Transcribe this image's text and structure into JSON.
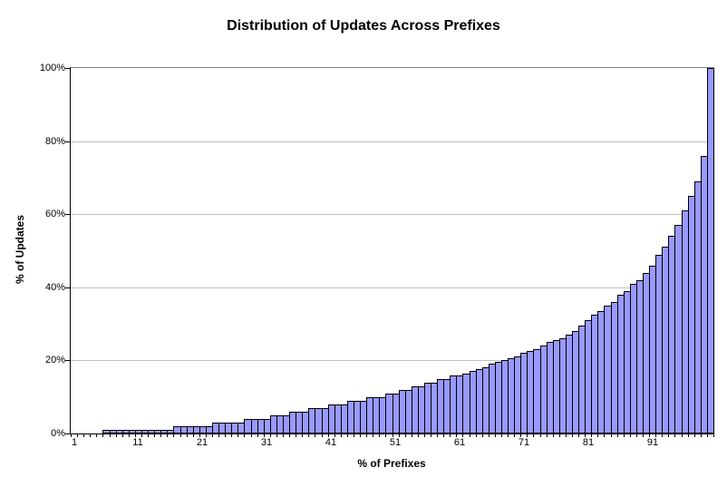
{
  "chart_data": {
    "type": "bar",
    "title": "Distribution of Updates Across Prefixes",
    "xlabel": "% of Prefixes",
    "ylabel": "% of Updates",
    "categories": [
      1,
      2,
      3,
      4,
      5,
      6,
      7,
      8,
      9,
      10,
      11,
      12,
      13,
      14,
      15,
      16,
      17,
      18,
      19,
      20,
      21,
      22,
      23,
      24,
      25,
      26,
      27,
      28,
      29,
      30,
      31,
      32,
      33,
      34,
      35,
      36,
      37,
      38,
      39,
      40,
      41,
      42,
      43,
      44,
      45,
      46,
      47,
      48,
      49,
      50,
      51,
      52,
      53,
      54,
      55,
      56,
      57,
      58,
      59,
      60,
      61,
      62,
      63,
      64,
      65,
      66,
      67,
      68,
      69,
      70,
      71,
      72,
      73,
      74,
      75,
      76,
      77,
      78,
      79,
      80,
      81,
      82,
      83,
      84,
      85,
      86,
      87,
      88,
      89,
      90,
      91,
      92,
      93,
      94,
      95,
      96,
      97,
      98,
      99,
      100
    ],
    "values": [
      0,
      0,
      0,
      0,
      0,
      1,
      1,
      1,
      1,
      1,
      1,
      1,
      1,
      1,
      1,
      1,
      2,
      2,
      2,
      2,
      2,
      2,
      3,
      3,
      3,
      3,
      3,
      4,
      4,
      4,
      4,
      5,
      5,
      5,
      6,
      6,
      6,
      7,
      7,
      7,
      8,
      8,
      8,
      9,
      9,
      9,
      10,
      10,
      10,
      11,
      11,
      12,
      12,
      13,
      13,
      14,
      14,
      15,
      15,
      16,
      16,
      16.5,
      17,
      17.5,
      18,
      19,
      19.5,
      20,
      20.5,
      21,
      22,
      22.5,
      23,
      24,
      25,
      25.5,
      26,
      27,
      28,
      29.5,
      31,
      32.5,
      33.5,
      35,
      36,
      38,
      39,
      41,
      42,
      44,
      46,
      49,
      51,
      54,
      57,
      61,
      65,
      69,
      76,
      100
    ],
    "xticks": [
      1,
      11,
      21,
      31,
      41,
      51,
      61,
      71,
      81,
      91
    ],
    "yticks": [
      0,
      20,
      40,
      60,
      80,
      100
    ],
    "ytick_suffix": "%",
    "ylim": [
      0,
      100
    ],
    "grid": true,
    "legend": false,
    "bar_color": "#9999ff",
    "bar_border_color": "#000000",
    "gridline_color": "#c0c0c0",
    "plot_border_color": "#808080",
    "axis_color": "#000000"
  }
}
